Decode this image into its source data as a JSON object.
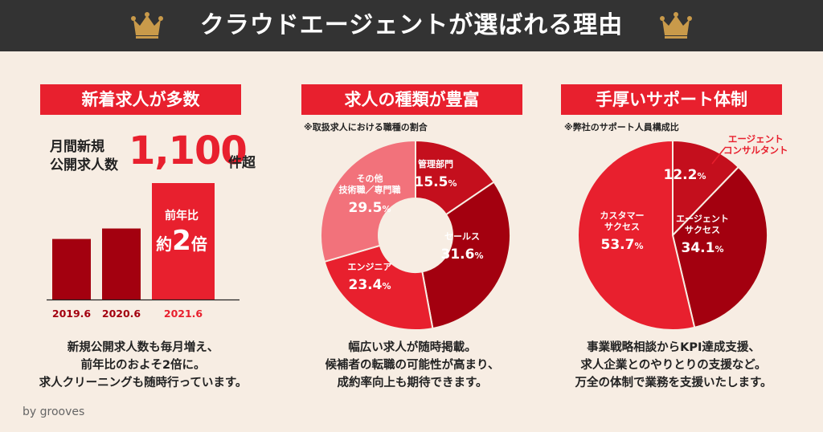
{
  "header": {
    "title": "クラウドエージェントが選ばれる理由"
  },
  "colors": {
    "accent": "#e8202e",
    "dark": "#a3000f",
    "pink": "#f2727b",
    "header_bg": "#333333",
    "crown": "#c99a4a"
  },
  "panel1": {
    "badge": "新着求人が多数",
    "label_line1": "月間新規",
    "label_line2": "公開求人数",
    "big_number": "1,100",
    "suffix": "件超",
    "callout_line1": "前年比",
    "callout_prefix": "約",
    "callout_number": "2",
    "callout_suffix": "倍",
    "desc": [
      "新規公開求人数も毎月増え、",
      "前年比のおよそ2倍に。",
      "求人クリーニングも随時行っています。"
    ]
  },
  "panel2": {
    "badge": "求人の種類が豊富",
    "note": "※取扱求人における職種の割合",
    "desc": [
      "幅広い求人が随時掲載。",
      "候補者の転職の可能性が高まり、",
      "成約率向上も期待できます。"
    ]
  },
  "panel3": {
    "badge": "手厚いサポート体制",
    "note": "※弊社のサポート人員構成比",
    "callout": [
      "エージェント",
      "コンサルタント"
    ],
    "desc": [
      "事業戦略相談からKPI達成支援、",
      "求人企業とのやりとりの支援など。",
      "万全の体制で業務を支援いたします。"
    ]
  },
  "footer": {
    "brand": "by grooves"
  },
  "chart_data": [
    {
      "type": "bar",
      "categories": [
        "2019.6",
        "2020.6",
        "2021.6"
      ],
      "values": [
        0.52,
        0.61,
        1.0
      ],
      "ylabel": ""
    },
    {
      "type": "pie",
      "categories": [
        [
          "管理部門"
        ],
        [
          "セールス"
        ],
        [
          "エンジニア"
        ],
        [
          "その他",
          "技術職／専門職"
        ]
      ],
      "values": [
        15.5,
        31.6,
        23.4,
        29.5
      ],
      "value_labels": [
        "15.5",
        "31.6",
        "23.4",
        "29.5"
      ],
      "unit": "%",
      "colors": [
        "#c40f1d",
        "#a3000f",
        "#e8202e",
        "#f2727b"
      ]
    },
    {
      "type": "pie",
      "categories": [
        [
          ""
        ],
        [
          "エージェント",
          "サクセス"
        ],
        [
          "カスタマー",
          "サクセス"
        ]
      ],
      "values": [
        12.2,
        34.1,
        53.7
      ],
      "value_labels": [
        "12.2",
        "34.1",
        "53.7"
      ],
      "unit": "%",
      "colors": [
        "#c40f1d",
        "#a3000f",
        "#e8202e"
      ]
    }
  ]
}
